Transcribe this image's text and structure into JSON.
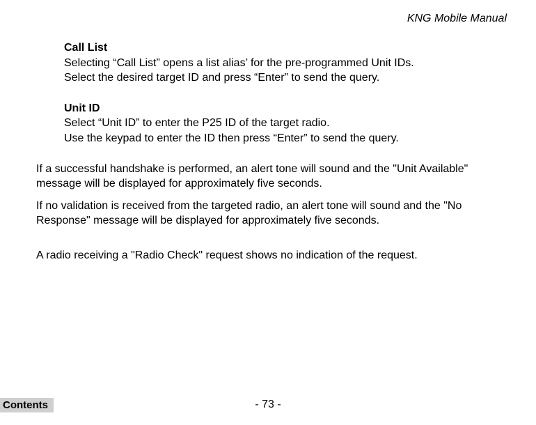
{
  "header": {
    "title": "KNG Mobile Manual"
  },
  "sections": {
    "callList": {
      "title": "Call List",
      "line1": "Selecting “Call List” opens a list alias’ for the pre-programmed Unit IDs.",
      "line2": "Select the desired target ID and press “Enter” to send the query."
    },
    "unitId": {
      "title": "Unit ID",
      "line1": "Select “Unit ID” to enter the P25 ID of the target radio.",
      "line2": "Use the keypad to enter the ID then press “Enter” to send the query."
    }
  },
  "paragraphs": {
    "p1": "If a successful handshake is performed, an alert tone will sound and the \"Unit Available\" message will be displayed for approximately five seconds.",
    "p2": "If no validation is received from the targeted radio, an alert tone will sound and the \"No Response\" message will be displayed for approximately five seconds.",
    "p3": "A radio receiving a \"Radio Check\" request shows no indication of the request."
  },
  "footer": {
    "pageNumber": "- 73 -",
    "contentsLabel": "Contents"
  }
}
